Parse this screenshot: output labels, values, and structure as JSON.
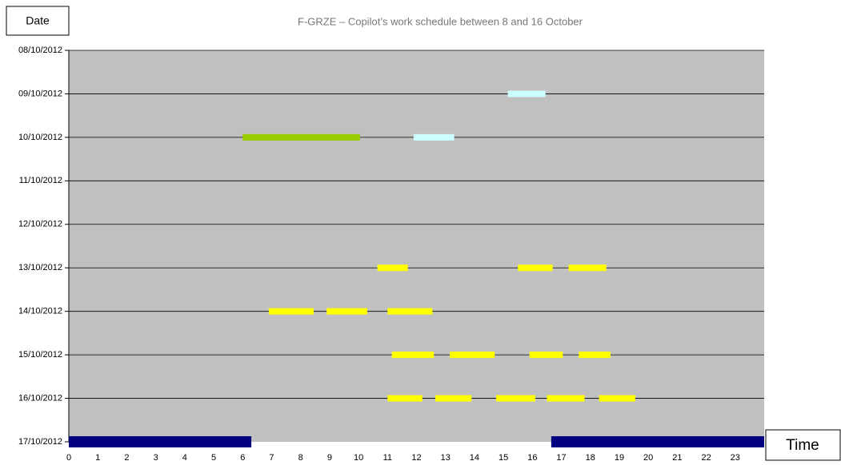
{
  "chart_data": {
    "type": "timeline",
    "title": "F-GRZE – Copilot’s work schedule between 8 and 16 October",
    "x_label": "Time",
    "y_label": "Date",
    "xlim": [
      0,
      24
    ],
    "xticks": [
      0,
      1,
      2,
      3,
      4,
      5,
      6,
      7,
      8,
      9,
      10,
      11,
      12,
      13,
      14,
      15,
      16,
      17,
      18,
      19,
      20,
      21,
      22,
      23
    ],
    "grid": true,
    "rows": [
      {
        "label": "08/10/2012",
        "spans": []
      },
      {
        "label": "09/10/2012",
        "spans": [
          {
            "start": 15.15,
            "end": 16.45,
            "color": "#ccffff"
          }
        ]
      },
      {
        "label": "10/10/2012",
        "spans": [
          {
            "start": 6.0,
            "end": 10.05,
            "color": "#99cc00"
          },
          {
            "start": 11.9,
            "end": 13.3,
            "color": "#ccffff"
          }
        ]
      },
      {
        "label": "11/10/2012",
        "spans": []
      },
      {
        "label": "12/10/2012",
        "spans": []
      },
      {
        "label": "13/10/2012",
        "spans": [
          {
            "start": 10.65,
            "end": 11.7,
            "color": "#ffff00"
          },
          {
            "start": 15.5,
            "end": 16.7,
            "color": "#ffff00"
          },
          {
            "start": 17.25,
            "end": 18.55,
            "color": "#ffff00"
          }
        ]
      },
      {
        "label": "14/10/2012",
        "spans": [
          {
            "start": 6.9,
            "end": 8.45,
            "color": "#ffff00"
          },
          {
            "start": 8.9,
            "end": 10.3,
            "color": "#ffff00"
          },
          {
            "start": 11.0,
            "end": 12.55,
            "color": "#ffff00"
          }
        ]
      },
      {
        "label": "15/10/2012",
        "spans": [
          {
            "start": 11.15,
            "end": 12.6,
            "color": "#ffff00"
          },
          {
            "start": 13.15,
            "end": 14.7,
            "color": "#ffff00"
          },
          {
            "start": 15.9,
            "end": 17.05,
            "color": "#ffff00"
          },
          {
            "start": 17.6,
            "end": 18.7,
            "color": "#ffff00"
          }
        ]
      },
      {
        "label": "16/10/2012",
        "spans": [
          {
            "start": 11.0,
            "end": 12.2,
            "color": "#ffff00"
          },
          {
            "start": 12.65,
            "end": 13.9,
            "color": "#ffff00"
          },
          {
            "start": 14.75,
            "end": 16.1,
            "color": "#ffff00"
          },
          {
            "start": 16.5,
            "end": 17.8,
            "color": "#ffff00"
          },
          {
            "start": 18.3,
            "end": 19.55,
            "color": "#ffff00"
          }
        ]
      },
      {
        "label": "17/10/2012",
        "spans": [
          {
            "start": 0,
            "end": 6.3,
            "color": "#000080"
          },
          {
            "start": 16.65,
            "end": 24,
            "color": "#000080"
          }
        ]
      }
    ]
  }
}
